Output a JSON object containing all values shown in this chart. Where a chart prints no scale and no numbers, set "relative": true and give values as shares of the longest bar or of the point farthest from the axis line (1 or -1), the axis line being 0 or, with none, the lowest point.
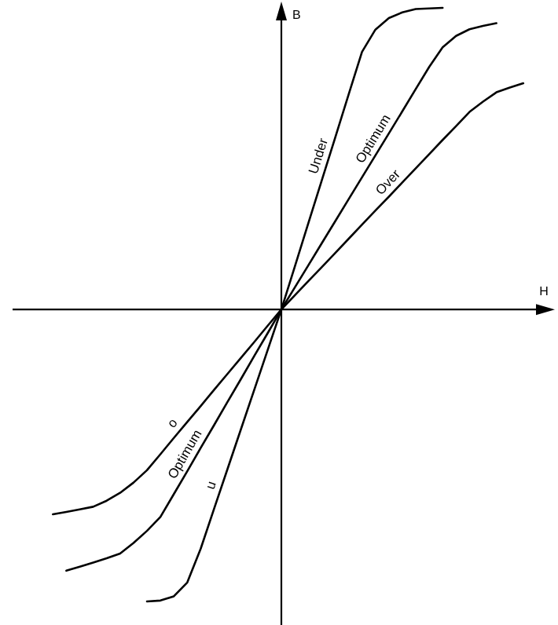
{
  "chart_data": {
    "type": "line",
    "relative": true,
    "xlabel": "H",
    "ylabel": "B",
    "line_style": "solid",
    "categories": [
      null,
      null,
      null,
      null,
      null,
      null,
      null,
      null,
      null,
      null,
      null,
      null,
      null,
      null,
      null,
      null,
      null,
      null,
      null,
      null,
      null,
      null,
      null,
      null,
      null,
      null,
      null,
      null,
      null,
      null,
      null,
      null,
      null,
      null,
      null,
      null,
      null,
      null,
      null,
      null,
      null
    ],
    "series": [
      {
        "name": "Under",
        "color": "#000000",
        "values": [
          null,
          null,
          null,
          null,
          null,
          null,
          null,
          null,
          null,
          null,
          -0.968,
          -0.965,
          -0.951,
          -0.905,
          -0.793,
          -0.66,
          -0.528,
          -0.396,
          -0.264,
          -0.132,
          0,
          0.142,
          0.285,
          0.427,
          0.569,
          0.712,
          0.854,
          0.928,
          0.966,
          0.985,
          0.996,
          0.998,
          1,
          null,
          null,
          null,
          null,
          null,
          null,
          null,
          null
        ]
      },
      {
        "name": "Optimum",
        "color": "#000000",
        "values": [
          null,
          null,
          null,
          null,
          -0.866,
          -0.853,
          -0.839,
          -0.825,
          -0.809,
          -0.774,
          -0.734,
          -0.688,
          -0.612,
          -0.536,
          -0.459,
          -0.383,
          -0.306,
          -0.23,
          -0.153,
          -0.077,
          0,
          0.073,
          0.146,
          0.219,
          0.292,
          0.365,
          0.438,
          0.511,
          0.584,
          0.657,
          0.731,
          0.804,
          0.869,
          0.907,
          0.929,
          0.94,
          0.949,
          null,
          null,
          null,
          null
        ]
      },
      {
        "name": "Over",
        "color": "#000000",
        "values": [
          null,
          null,
          null,
          -0.679,
          -0.671,
          -0.663,
          -0.654,
          -0.634,
          -0.608,
          -0.574,
          -0.533,
          -0.48,
          -0.426,
          -0.373,
          -0.32,
          -0.266,
          -0.213,
          -0.16,
          -0.107,
          -0.053,
          0,
          0.047,
          0.094,
          0.14,
          0.187,
          0.234,
          0.281,
          0.328,
          0.374,
          0.421,
          0.468,
          0.515,
          0.562,
          0.608,
          0.655,
          0.689,
          0.72,
          0.736,
          0.75,
          null,
          null
        ]
      }
    ],
    "annotations": [
      "u",
      "Optimum",
      "o"
    ]
  }
}
